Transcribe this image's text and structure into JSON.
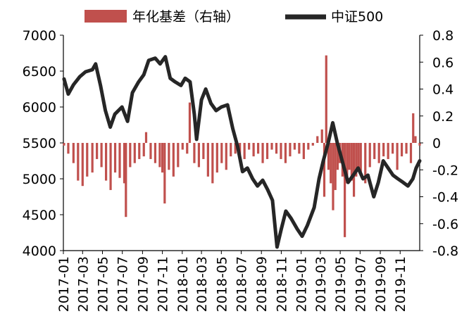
{
  "chart_data": {
    "type": "bar+line",
    "legend": {
      "placement": "top",
      "items": [
        "年化基差（右轴）",
        "中证500"
      ]
    },
    "colors": {
      "basis": "#c0504d",
      "index": "#262626"
    },
    "left_axis": {
      "ylim": [
        4000,
        7000
      ],
      "ticks": [
        "7000",
        "6500",
        "6000",
        "5500",
        "5000",
        "4500",
        "4000"
      ]
    },
    "right_axis": {
      "ylim": [
        -0.8,
        0.8
      ],
      "ticks": [
        "0.8",
        "0.6",
        "0.4",
        "0.2",
        "0",
        "-0.2",
        "-0.4",
        "-0.6",
        "-0.8"
      ]
    },
    "x_ticks": [
      "2017-01",
      "2017-03",
      "2017-05",
      "2017-07",
      "2017-09",
      "2017-11",
      "2018-01",
      "2018-03",
      "2018-05",
      "2018-07",
      "2018-09",
      "2018-11",
      "2019-01",
      "2019-03",
      "2019-05",
      "2019-07",
      "2019-09",
      "2019-11"
    ],
    "x_range": [
      "2017-01-01",
      "2019-12-31"
    ],
    "series": [
      {
        "name": "中证500",
        "axis": "left",
        "kind": "line",
        "points": [
          [
            "2017-01-03",
            6390
          ],
          [
            "2017-01-16",
            6180
          ],
          [
            "2017-02-01",
            6310
          ],
          [
            "2017-02-20",
            6420
          ],
          [
            "2017-03-10",
            6490
          ],
          [
            "2017-03-31",
            6520
          ],
          [
            "2017-04-10",
            6600
          ],
          [
            "2017-04-25",
            6300
          ],
          [
            "2017-05-10",
            5950
          ],
          [
            "2017-05-25",
            5720
          ],
          [
            "2017-06-08",
            5900
          ],
          [
            "2017-06-30",
            6000
          ],
          [
            "2017-07-17",
            5800
          ],
          [
            "2017-08-01",
            6200
          ],
          [
            "2017-08-20",
            6350
          ],
          [
            "2017-09-05",
            6450
          ],
          [
            "2017-09-20",
            6650
          ],
          [
            "2017-10-10",
            6680
          ],
          [
            "2017-10-25",
            6600
          ],
          [
            "2017-11-10",
            6700
          ],
          [
            "2017-11-25",
            6400
          ],
          [
            "2017-12-10",
            6350
          ],
          [
            "2017-12-28",
            6300
          ],
          [
            "2018-01-10",
            6400
          ],
          [
            "2018-01-25",
            6350
          ],
          [
            "2018-02-07",
            5900
          ],
          [
            "2018-02-14",
            5550
          ],
          [
            "2018-03-01",
            6100
          ],
          [
            "2018-03-14",
            6250
          ],
          [
            "2018-03-30",
            6050
          ],
          [
            "2018-04-15",
            5950
          ],
          [
            "2018-05-01",
            6000
          ],
          [
            "2018-05-20",
            6030
          ],
          [
            "2018-06-05",
            5700
          ],
          [
            "2018-06-20",
            5450
          ],
          [
            "2018-07-05",
            5100
          ],
          [
            "2018-07-20",
            5150
          ],
          [
            "2018-08-05",
            5000
          ],
          [
            "2018-08-20",
            4900
          ],
          [
            "2018-09-05",
            4980
          ],
          [
            "2018-09-20",
            4850
          ],
          [
            "2018-10-05",
            4700
          ],
          [
            "2018-10-19",
            4050
          ],
          [
            "2018-11-01",
            4300
          ],
          [
            "2018-11-15",
            4550
          ],
          [
            "2018-12-01",
            4450
          ],
          [
            "2018-12-20",
            4300
          ],
          [
            "2019-01-04",
            4200
          ],
          [
            "2019-01-20",
            4350
          ],
          [
            "2019-02-10",
            4600
          ],
          [
            "2019-02-25",
            5000
          ],
          [
            "2019-03-10",
            5250
          ],
          [
            "2019-03-25",
            5500
          ],
          [
            "2019-04-08",
            5780
          ],
          [
            "2019-04-22",
            5500
          ],
          [
            "2019-05-10",
            5200
          ],
          [
            "2019-05-25",
            4950
          ],
          [
            "2019-06-10",
            5050
          ],
          [
            "2019-06-25",
            5150
          ],
          [
            "2019-07-10",
            5000
          ],
          [
            "2019-07-25",
            5050
          ],
          [
            "2019-08-12",
            4750
          ],
          [
            "2019-08-26",
            4950
          ],
          [
            "2019-09-10",
            5250
          ],
          [
            "2019-09-25",
            5150
          ],
          [
            "2019-10-10",
            5050
          ],
          [
            "2019-10-25",
            5000
          ],
          [
            "2019-11-10",
            4950
          ],
          [
            "2019-11-25",
            4900
          ],
          [
            "2019-12-10",
            5000
          ],
          [
            "2019-12-20",
            5150
          ],
          [
            "2019-12-31",
            5250
          ]
        ]
      },
      {
        "name": "年化基差（右轴）",
        "axis": "right",
        "kind": "bar",
        "points": [
          [
            "2017-01-03",
            -0.02
          ],
          [
            "2017-01-16",
            -0.08
          ],
          [
            "2017-02-01",
            -0.15
          ],
          [
            "2017-02-15",
            -0.28
          ],
          [
            "2017-03-01",
            -0.32
          ],
          [
            "2017-03-15",
            -0.25
          ],
          [
            "2017-03-31",
            -0.22
          ],
          [
            "2017-04-14",
            -0.12
          ],
          [
            "2017-04-28",
            -0.18
          ],
          [
            "2017-05-12",
            -0.28
          ],
          [
            "2017-05-26",
            -0.35
          ],
          [
            "2017-06-09",
            -0.22
          ],
          [
            "2017-06-23",
            -0.26
          ],
          [
            "2017-07-07",
            -0.3
          ],
          [
            "2017-07-12",
            -0.55
          ],
          [
            "2017-07-25",
            -0.18
          ],
          [
            "2017-08-08",
            -0.15
          ],
          [
            "2017-08-22",
            -0.12
          ],
          [
            "2017-09-05",
            -0.1
          ],
          [
            "2017-09-12",
            0.08
          ],
          [
            "2017-09-26",
            -0.12
          ],
          [
            "2017-10-10",
            -0.15
          ],
          [
            "2017-10-24",
            -0.18
          ],
          [
            "2017-11-01",
            -0.22
          ],
          [
            "2017-11-08",
            -0.45
          ],
          [
            "2017-11-21",
            -0.2
          ],
          [
            "2017-12-05",
            -0.25
          ],
          [
            "2017-12-19",
            -0.18
          ],
          [
            "2018-01-02",
            -0.05
          ],
          [
            "2018-01-16",
            -0.08
          ],
          [
            "2018-01-24",
            0.3
          ],
          [
            "2018-02-07",
            -0.15
          ],
          [
            "2018-02-21",
            -0.18
          ],
          [
            "2018-03-07",
            -0.12
          ],
          [
            "2018-03-21",
            -0.25
          ],
          [
            "2018-04-04",
            -0.3
          ],
          [
            "2018-04-18",
            -0.22
          ],
          [
            "2018-05-02",
            -0.15
          ],
          [
            "2018-05-16",
            -0.2
          ],
          [
            "2018-05-30",
            -0.1
          ],
          [
            "2018-06-13",
            -0.08
          ],
          [
            "2018-06-27",
            -0.1
          ],
          [
            "2018-07-11",
            -0.12
          ],
          [
            "2018-07-25",
            -0.05
          ],
          [
            "2018-08-08",
            -0.1
          ],
          [
            "2018-08-22",
            -0.08
          ],
          [
            "2018-09-05",
            -0.15
          ],
          [
            "2018-09-19",
            -0.12
          ],
          [
            "2018-10-03",
            -0.05
          ],
          [
            "2018-10-17",
            -0.08
          ],
          [
            "2018-10-31",
            -0.12
          ],
          [
            "2018-11-14",
            -0.15
          ],
          [
            "2018-11-28",
            -0.1
          ],
          [
            "2018-12-12",
            -0.05
          ],
          [
            "2018-12-26",
            -0.08
          ],
          [
            "2019-01-09",
            -0.12
          ],
          [
            "2019-01-23",
            -0.05
          ],
          [
            "2019-02-06",
            -0.02
          ],
          [
            "2019-02-20",
            0.05
          ],
          [
            "2019-03-06",
            0.1
          ],
          [
            "2019-03-13",
            -0.4
          ],
          [
            "2019-03-19",
            0.65
          ],
          [
            "2019-03-26",
            -0.2
          ],
          [
            "2019-04-02",
            -0.3
          ],
          [
            "2019-04-09",
            -0.5
          ],
          [
            "2019-04-16",
            -0.35
          ],
          [
            "2019-04-23",
            -0.2
          ],
          [
            "2019-04-30",
            -0.15
          ],
          [
            "2019-05-08",
            -0.25
          ],
          [
            "2019-05-15",
            -0.7
          ],
          [
            "2019-05-22",
            -0.3
          ],
          [
            "2019-05-29",
            -0.2
          ],
          [
            "2019-06-05",
            -0.28
          ],
          [
            "2019-06-12",
            -0.4
          ],
          [
            "2019-06-19",
            -0.25
          ],
          [
            "2019-06-26",
            -0.2
          ],
          [
            "2019-07-03",
            -0.22
          ],
          [
            "2019-07-17",
            -0.3
          ],
          [
            "2019-07-31",
            -0.18
          ],
          [
            "2019-08-14",
            -0.12
          ],
          [
            "2019-08-28",
            -0.15
          ],
          [
            "2019-09-11",
            -0.1
          ],
          [
            "2019-09-25",
            -0.12
          ],
          [
            "2019-10-09",
            -0.08
          ],
          [
            "2019-10-23",
            -0.2
          ],
          [
            "2019-11-06",
            -0.1
          ],
          [
            "2019-11-20",
            -0.08
          ],
          [
            "2019-12-04",
            -0.15
          ],
          [
            "2019-12-11",
            0.22
          ],
          [
            "2019-12-18",
            0.05
          ],
          [
            "2019-12-31",
            -0.02
          ]
        ]
      }
    ]
  }
}
